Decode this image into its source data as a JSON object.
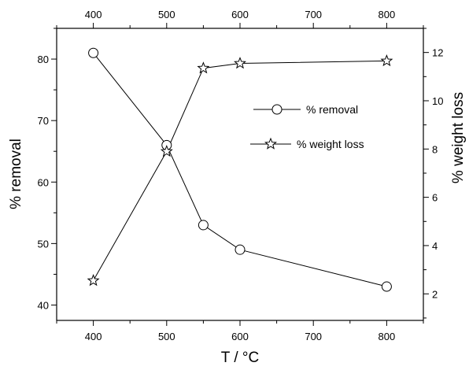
{
  "chart_data": {
    "type": "line",
    "x_axis": {
      "label": "T / °C",
      "min": 350,
      "max": 850,
      "ticks": [
        400,
        500,
        600,
        700,
        800
      ],
      "tick_labels": [
        "400",
        "500",
        "600",
        "700",
        "800"
      ],
      "top_tick_labels": [
        "400",
        "500",
        "600",
        "700",
        "800"
      ]
    },
    "y_left": {
      "label": "% removal",
      "min": 37.5,
      "max": 85,
      "ticks": [
        40,
        50,
        60,
        70,
        80
      ],
      "tick_labels": [
        "40",
        "50",
        "60",
        "70",
        "80"
      ]
    },
    "y_right": {
      "label": "% weight loss",
      "min": 0.9,
      "max": 13,
      "ticks": [
        2,
        4,
        6,
        8,
        10,
        12
      ],
      "tick_labels": [
        "2",
        "4",
        "6",
        "8",
        "10",
        "12"
      ]
    },
    "series": [
      {
        "name": "% removal",
        "axis": "left",
        "marker": "circle",
        "x": [
          400,
          500,
          550,
          600,
          800
        ],
        "y": [
          81,
          66,
          53,
          49,
          43
        ]
      },
      {
        "name": "% weight loss",
        "axis": "right",
        "marker": "star",
        "x": [
          400,
          500,
          550,
          600,
          800
        ],
        "y": [
          2.55,
          7.9,
          11.35,
          11.55,
          11.65
        ]
      }
    ],
    "legend": {
      "position": "upper-right-inside"
    },
    "grid": false
  }
}
